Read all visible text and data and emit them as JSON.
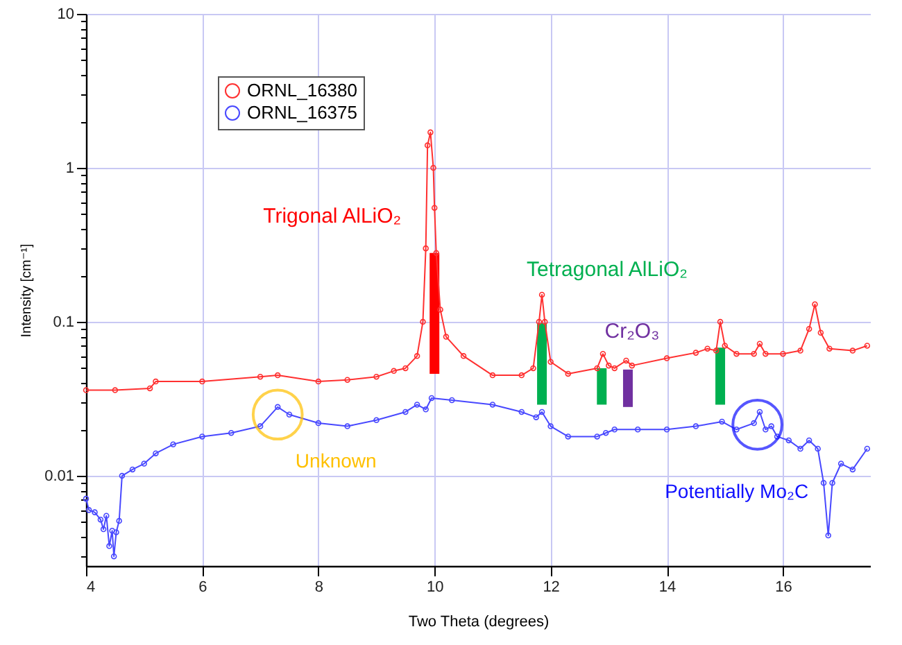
{
  "chart_data": {
    "type": "line",
    "xlabel": "Two Theta (degrees)",
    "ylabel": "Intensity [cm⁻¹]",
    "xlim": [
      4,
      17.5
    ],
    "xticks": [
      4,
      6,
      8,
      10,
      12,
      14,
      16
    ],
    "ylim": [
      0.0026,
      10
    ],
    "log": true,
    "yticks": [
      {
        "value": 0.003,
        "label": null
      },
      {
        "value": 0.004,
        "label": null
      },
      {
        "value": 0.005,
        "label": null
      },
      {
        "value": 0.006,
        "label": null
      },
      {
        "value": 0.007,
        "label": null
      },
      {
        "value": 0.008,
        "label": null
      },
      {
        "value": 0.009,
        "label": null
      },
      0.01,
      {
        "value": 0.02,
        "label": null
      },
      {
        "value": 0.03,
        "label": null
      },
      {
        "value": 0.04,
        "label": null
      },
      {
        "value": 0.05,
        "label": null
      },
      {
        "value": 0.06,
        "label": null
      },
      {
        "value": 0.07,
        "label": null
      },
      {
        "value": 0.08,
        "label": null
      },
      {
        "value": 0.09,
        "label": null
      },
      0.1,
      {
        "value": 0.2,
        "label": null
      },
      {
        "value": 0.3,
        "label": null
      },
      {
        "value": 0.4,
        "label": null
      },
      {
        "value": 0.5,
        "label": null
      },
      {
        "value": 0.6,
        "label": null
      },
      {
        "value": 0.7,
        "label": null
      },
      {
        "value": 0.8,
        "label": null
      },
      {
        "value": 0.9,
        "label": null
      },
      1,
      {
        "value": 2,
        "label": null
      },
      {
        "value": 3,
        "label": null
      },
      {
        "value": 4,
        "label": null
      },
      {
        "value": 5,
        "label": null
      },
      {
        "value": 6,
        "label": null
      },
      {
        "value": 7,
        "label": null
      },
      {
        "value": 8,
        "label": null
      },
      {
        "value": 9,
        "label": null
      },
      10
    ],
    "grid": true,
    "legend": "top left",
    "marker": "circle",
    "line_style": "solid",
    "series": [
      {
        "name": "ORNL_16380",
        "color": "#ff3030",
        "x": [
          4,
          4.5,
          5.1,
          5.2,
          6,
          7,
          7.3,
          8,
          8.5,
          9,
          9.3,
          9.5,
          9.7,
          9.8,
          9.85,
          9.88,
          9.93,
          9.98,
          10.0,
          10.03,
          10.1,
          10.2,
          10.5,
          11,
          11.5,
          11.7,
          11.8,
          11.85,
          11.9,
          12,
          12.3,
          12.8,
          12.9,
          13.0,
          13.1,
          13.3,
          13.4,
          14,
          14.5,
          14.7,
          14.85,
          14.92,
          15.0,
          15.2,
          15.5,
          15.6,
          15.7,
          16,
          16.3,
          16.45,
          16.55,
          16.65,
          16.8,
          17.2,
          17.45
        ],
        "values": [
          0.036,
          0.036,
          0.037,
          0.041,
          0.041,
          0.044,
          0.045,
          0.041,
          0.042,
          0.044,
          0.048,
          0.05,
          0.06,
          0.1,
          0.3,
          1.4,
          1.7,
          1.0,
          0.55,
          0.28,
          0.12,
          0.08,
          0.06,
          0.045,
          0.045,
          0.05,
          0.1,
          0.15,
          0.1,
          0.055,
          0.046,
          0.05,
          0.062,
          0.052,
          0.05,
          0.056,
          0.052,
          0.058,
          0.063,
          0.067,
          0.065,
          0.1,
          0.07,
          0.062,
          0.062,
          0.072,
          0.062,
          0.062,
          0.065,
          0.09,
          0.13,
          0.085,
          0.067,
          0.065,
          0.07
        ]
      },
      {
        "name": "ORNL_16375",
        "color": "#4848ff",
        "x": [
          4.0,
          4.05,
          4.15,
          4.25,
          4.3,
          4.35,
          4.4,
          4.45,
          4.48,
          4.52,
          4.57,
          4.62,
          4.8,
          5.0,
          5.2,
          5.5,
          6.0,
          6.5,
          7.0,
          7.3,
          7.5,
          8.0,
          8.5,
          9.0,
          9.5,
          9.7,
          9.85,
          9.95,
          10.3,
          11.0,
          11.5,
          11.75,
          11.85,
          12.0,
          12.3,
          12.8,
          12.95,
          13.1,
          13.5,
          14.0,
          14.5,
          14.95,
          15.2,
          15.5,
          15.6,
          15.7,
          15.8,
          15.9,
          16.1,
          16.3,
          16.45,
          16.6,
          16.7,
          16.78,
          16.85,
          17.0,
          17.2,
          17.45
        ],
        "values": [
          0.0071,
          0.006,
          0.0058,
          0.0052,
          0.0045,
          0.0055,
          0.0035,
          0.0044,
          0.003,
          0.0043,
          0.0051,
          0.01,
          0.011,
          0.012,
          0.014,
          0.016,
          0.018,
          0.019,
          0.021,
          0.028,
          0.025,
          0.022,
          0.021,
          0.023,
          0.026,
          0.029,
          0.027,
          0.032,
          0.031,
          0.029,
          0.026,
          0.024,
          0.026,
          0.021,
          0.018,
          0.018,
          0.019,
          0.02,
          0.02,
          0.02,
          0.021,
          0.0225,
          0.02,
          0.022,
          0.026,
          0.02,
          0.021,
          0.018,
          0.017,
          0.015,
          0.017,
          0.015,
          0.009,
          0.0041,
          0.009,
          0.012,
          0.011,
          0.015
        ]
      },
      {
        "type": "bar",
        "name": "Trigonal AlLiO₂",
        "color": "#ff0000",
        "x": [
          10.0
        ],
        "base": [
          0.046
        ],
        "values": [
          0.234
        ]
      },
      {
        "type": "bar",
        "name": "Tetragonal AlLiO₂",
        "color": "#00b050",
        "x": [
          11.85,
          12.88,
          14.92
        ],
        "base": [
          0.029,
          0.029,
          0.029
        ],
        "values": [
          0.069,
          0.021,
          0.039
        ]
      },
      {
        "type": "bar",
        "name": "Cr₂O₃",
        "color": "#7030a0",
        "x": [
          13.33
        ],
        "base": [
          0.028
        ],
        "values": [
          0.021
        ]
      }
    ],
    "annotations": [
      {
        "text": "Unknown",
        "x": 7.3,
        "y": 0.025
      },
      {
        "text": "Potentially Mo₂C",
        "x": 15.56,
        "y": 0.0215
      }
    ]
  }
}
